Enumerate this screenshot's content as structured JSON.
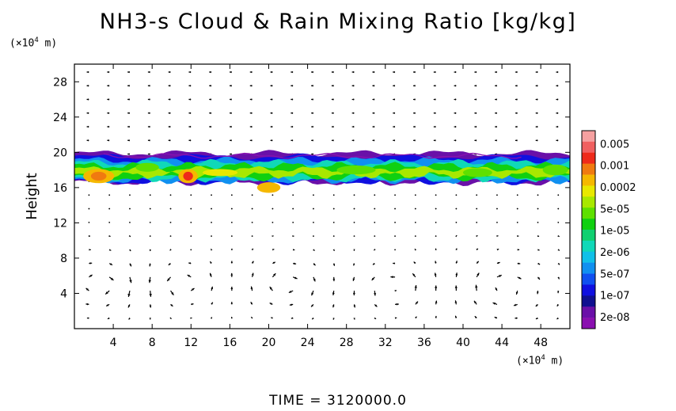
{
  "chart_data": {
    "type": "heatmap",
    "title": "NH3-s Cloud & Rain Mixing Ratio [kg/kg]",
    "ylabel": "Height",
    "y_unit_base": "(×10",
    "y_unit_exp": "4",
    "y_unit_tail": " m)",
    "x_unit_base": "(×10",
    "x_unit_exp": "4",
    "x_unit_tail": " m)",
    "xlim": [
      0,
      51
    ],
    "ylim": [
      0,
      30
    ],
    "x_ticks": [
      "4",
      "8",
      "12",
      "16",
      "20",
      "24",
      "28",
      "32",
      "36",
      "40",
      "44",
      "48"
    ],
    "y_ticks": [
      "4",
      "8",
      "12",
      "16",
      "20",
      "24",
      "28"
    ],
    "colorbar": {
      "labels": [
        "0.005",
        "0.001",
        "0.0002",
        "5e-05",
        "1e-05",
        "2e-06",
        "5e-07",
        "1e-07",
        "2e-08"
      ],
      "colors": [
        "#f5a0a0",
        "#f06060",
        "#ee2a1a",
        "#f07a10",
        "#f5b800",
        "#e8e800",
        "#a8e800",
        "#5ee000",
        "#10d010",
        "#10d070",
        "#10d8b8",
        "#10c0e8",
        "#1090f0",
        "#1050f0",
        "#1010e0",
        "#101090",
        "#6a10a8",
        "#8a10b0"
      ]
    },
    "cloud_layer_height_range": [
      15.5,
      20
    ],
    "vector_field": "wind vectors shown as arrows over the domain"
  },
  "footer": "TIME = 3120000.0"
}
